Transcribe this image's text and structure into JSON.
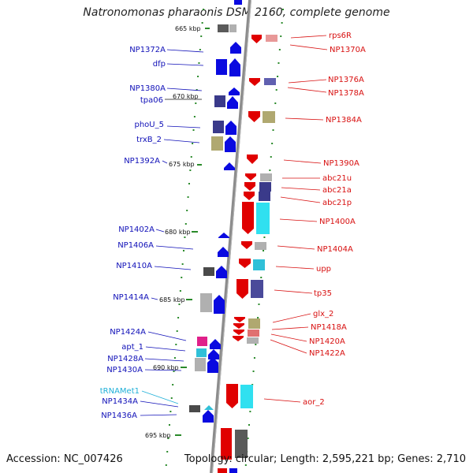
{
  "title": "Natronomonas pharaonis DSM 2160, complete genome",
  "footer": {
    "accession": "Accession: NC_007426",
    "topology": "Topology: circular; Length: 2,595,221 bp; Genes: 2,710"
  },
  "colors": {
    "forward_label": "#1010b8",
    "reverse_label": "#d81010",
    "trna_label": "#20b0d8",
    "backbone": "#8a8a8a",
    "tick": "#2a8a2a"
  },
  "kbp_markers": [
    {
      "label": "665 kbp",
      "kbp": 665
    },
    {
      "label": "670 kbp",
      "kbp": 670
    },
    {
      "label": "675 kbp",
      "kbp": 675
    },
    {
      "label": "680 kbp",
      "kbp": 680
    },
    {
      "label": "685 kbp",
      "kbp": 685
    },
    {
      "label": "690 kbp",
      "kbp": 690
    },
    {
      "label": "695 kbp",
      "kbp": 695
    }
  ],
  "forward_genes": [
    {
      "label": "NP1372A"
    },
    {
      "label": "dfp"
    },
    {
      "label": "NP1380A"
    },
    {
      "label": "tpa06"
    },
    {
      "label": "phoU_5"
    },
    {
      "label": "trxB_2"
    },
    {
      "label": "NP1392A"
    },
    {
      "label": "NP1402A"
    },
    {
      "label": "NP1406A"
    },
    {
      "label": "NP1410A"
    },
    {
      "label": "NP1414A"
    },
    {
      "label": "NP1424A"
    },
    {
      "label": "apt_1"
    },
    {
      "label": "NP1428A"
    },
    {
      "label": "NP1430A"
    },
    {
      "label": "tRNAMet1",
      "kind": "trna"
    },
    {
      "label": "NP1434A"
    },
    {
      "label": "NP1436A"
    }
  ],
  "reverse_genes": [
    {
      "label": "rps6R"
    },
    {
      "label": "NP1370A"
    },
    {
      "label": "NP1376A"
    },
    {
      "label": "NP1378A"
    },
    {
      "label": "NP1384A"
    },
    {
      "label": "NP1390A"
    },
    {
      "label": "abc21u"
    },
    {
      "label": "abc21a"
    },
    {
      "label": "abc21p"
    },
    {
      "label": "NP1400A"
    },
    {
      "label": "NP1404A"
    },
    {
      "label": "upp"
    },
    {
      "label": "tp35"
    },
    {
      "label": "glx_2"
    },
    {
      "label": "NP1418A"
    },
    {
      "label": "NP1420A"
    },
    {
      "label": "NP1422A"
    },
    {
      "label": "aor_2"
    }
  ]
}
